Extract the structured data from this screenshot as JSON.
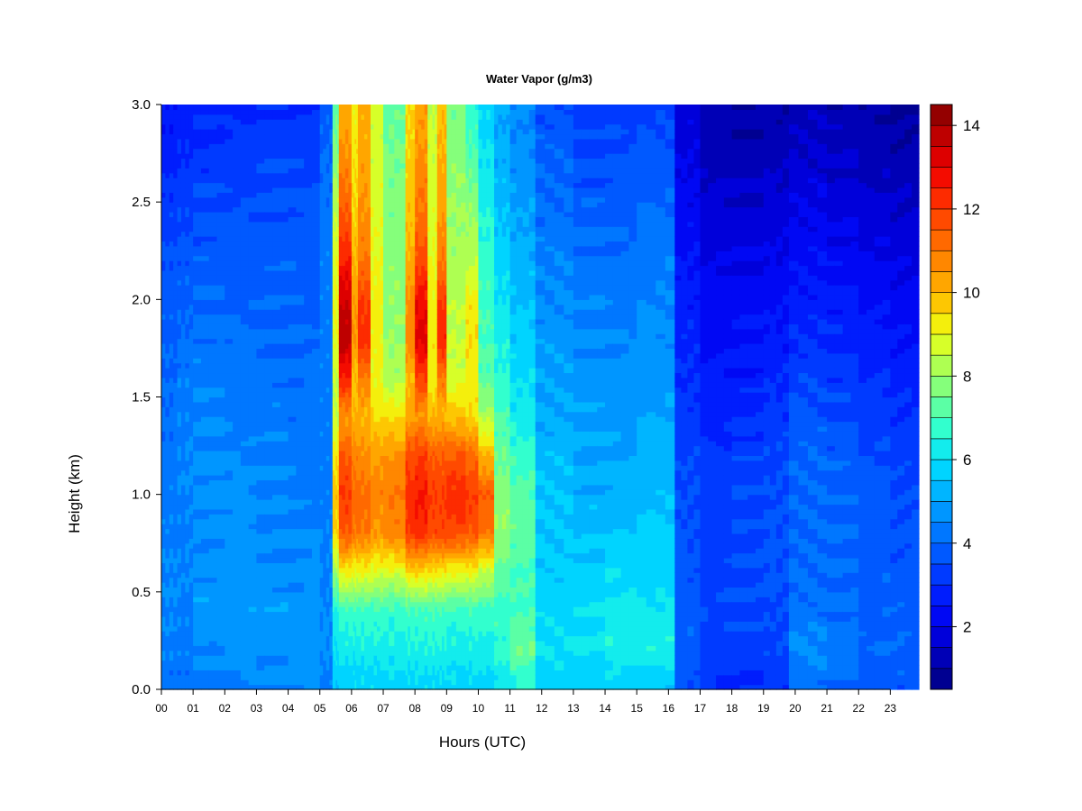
{
  "chart_data": {
    "type": "heatmap",
    "title": "Water Vapor (g/m3)",
    "xlabel": "Hours (UTC)",
    "ylabel": "Height (km)",
    "xlim": [
      0,
      23.9
    ],
    "ylim": [
      0,
      3
    ],
    "x_ticks": [
      "00",
      "01",
      "02",
      "03",
      "04",
      "05",
      "06",
      "07",
      "08",
      "09",
      "10",
      "11",
      "12",
      "13",
      "14",
      "15",
      "16",
      "17",
      "18",
      "19",
      "20",
      "21",
      "22",
      "23"
    ],
    "y_ticks": [
      "0.0",
      "0.5",
      "1.0",
      "1.5",
      "2.0",
      "2.5",
      "3.0"
    ],
    "colorbar": {
      "min": 0.5,
      "max": 14.5,
      "levels": 28,
      "ticks": [
        "2",
        "4",
        "6",
        "8",
        "10",
        "12",
        "14"
      ],
      "colors": [
        "#00007f",
        "#0000b8",
        "#0000f0",
        "#0020ff",
        "#0050ff",
        "#0080ff",
        "#00b0ff",
        "#00e0ff",
        "#30ffd0",
        "#70ff90",
        "#b0ff50",
        "#f0ff10",
        "#ffc000",
        "#ff9000",
        "#ff6000",
        "#ff3000",
        "#f00000",
        "#c00000",
        "#7f0000"
      ]
    },
    "profile_heights_km": [
      0,
      0.1,
      0.2,
      0.4,
      0.6,
      0.8,
      1.0,
      1.2,
      1.4,
      1.6,
      1.8,
      2.0,
      2.2,
      2.5,
      2.8,
      3.0
    ],
    "time_segments": [
      {
        "t": [
          0.0,
          0.5
        ],
        "profile": [
          4.3,
          4.2,
          4.4,
          4.5,
          4.5,
          4.4,
          4.3,
          4.2,
          4.1,
          4.0,
          3.9,
          3.8,
          3.6,
          3.2,
          2.7,
          2.5
        ]
      },
      {
        "t": [
          0.5,
          1.0
        ],
        "profile": [
          4.1,
          4.2,
          4.3,
          4.4,
          4.5,
          4.4,
          4.5,
          4.5,
          4.4,
          4.3,
          4.1,
          3.9,
          3.7,
          3.3,
          2.9,
          2.6
        ]
      },
      {
        "t": [
          1.0,
          2.0
        ],
        "profile": [
          4.3,
          4.4,
          4.6,
          4.8,
          4.7,
          4.6,
          4.7,
          4.6,
          4.5,
          4.3,
          4.2,
          4.0,
          3.8,
          3.5,
          3.0,
          2.8
        ]
      },
      {
        "t": [
          2.0,
          3.0
        ],
        "profile": [
          4.4,
          4.5,
          4.8,
          4.9,
          4.8,
          4.6,
          4.6,
          4.5,
          4.4,
          4.2,
          4.1,
          3.9,
          3.8,
          3.5,
          3.1,
          2.9
        ]
      },
      {
        "t": [
          3.0,
          4.0
        ],
        "profile": [
          4.5,
          4.5,
          4.7,
          4.8,
          4.7,
          4.5,
          4.5,
          4.4,
          4.3,
          4.2,
          4.0,
          3.9,
          3.8,
          3.6,
          3.3,
          3.1
        ]
      },
      {
        "t": [
          4.0,
          5.0
        ],
        "profile": [
          4.6,
          4.7,
          4.8,
          4.7,
          4.6,
          4.5,
          4.4,
          4.3,
          4.2,
          4.1,
          4.0,
          3.9,
          3.8,
          3.6,
          3.3,
          3.0
        ]
      },
      {
        "t": [
          5.0,
          5.4
        ],
        "profile": [
          4.3,
          4.4,
          4.6,
          4.5,
          4.4,
          4.4,
          4.3,
          4.3,
          4.3,
          4.3,
          4.3,
          4.3,
          4.3,
          4.2,
          4.0,
          3.8
        ]
      },
      {
        "t": [
          5.4,
          5.6
        ],
        "profile": [
          5.6,
          5.7,
          6.0,
          6.4,
          8.0,
          9.5,
          9.8,
          9.3,
          8.5,
          8.5,
          9.0,
          9.0,
          8.9,
          8.3,
          7.6,
          7.3
        ]
      },
      {
        "t": [
          5.6,
          6.0
        ],
        "profile": [
          5.6,
          5.8,
          6.2,
          6.8,
          9.2,
          11.5,
          12.0,
          11.5,
          10.5,
          12.5,
          13.8,
          13.5,
          12.5,
          11.3,
          10.5,
          10.2
        ]
      },
      {
        "t": [
          6.0,
          6.2
        ],
        "profile": [
          5.8,
          5.8,
          6.2,
          6.8,
          9.0,
          11.0,
          11.3,
          10.8,
          10.0,
          9.8,
          10.5,
          10.4,
          10.0,
          9.5,
          9.3,
          9.2
        ]
      },
      {
        "t": [
          6.2,
          6.6
        ],
        "profile": [
          5.8,
          5.9,
          6.3,
          6.8,
          9.0,
          11.0,
          11.2,
          10.7,
          10.0,
          11.0,
          12.3,
          12.0,
          11.0,
          10.5,
          10.2,
          10.2
        ]
      },
      {
        "t": [
          6.6,
          7.0
        ],
        "profile": [
          5.8,
          5.9,
          6.3,
          6.8,
          8.8,
          10.5,
          10.8,
          10.3,
          9.5,
          9.0,
          9.2,
          9.2,
          9.0,
          8.8,
          8.7,
          8.7
        ]
      },
      {
        "t": [
          7.0,
          7.7
        ],
        "profile": [
          5.8,
          6.0,
          6.3,
          6.7,
          8.8,
          10.8,
          11.0,
          10.5,
          9.5,
          8.2,
          8.0,
          7.9,
          7.8,
          7.7,
          7.5,
          7.4
        ]
      },
      {
        "t": [
          7.7,
          8.0
        ],
        "profile": [
          5.8,
          6.0,
          6.4,
          6.9,
          9.5,
          12.0,
          12.3,
          11.8,
          10.3,
          10.0,
          10.8,
          10.6,
          10.1,
          9.8,
          9.6,
          9.5
        ]
      },
      {
        "t": [
          8.0,
          8.4
        ],
        "profile": [
          5.8,
          6.0,
          6.4,
          6.9,
          9.5,
          12.3,
          12.6,
          12.0,
          10.5,
          12.0,
          13.2,
          12.8,
          11.8,
          11.0,
          10.5,
          10.3
        ]
      },
      {
        "t": [
          8.4,
          8.7
        ],
        "profile": [
          5.8,
          6.0,
          6.4,
          6.9,
          9.3,
          11.8,
          12.0,
          11.5,
          10.0,
          9.2,
          9.3,
          9.2,
          9.0,
          8.8,
          8.6,
          8.5
        ]
      },
      {
        "t": [
          8.7,
          9.0
        ],
        "profile": [
          5.8,
          6.0,
          6.4,
          6.9,
          9.3,
          11.8,
          12.0,
          11.5,
          10.0,
          11.0,
          12.4,
          12.0,
          11.0,
          10.3,
          10.0,
          9.8
        ]
      },
      {
        "t": [
          9.0,
          9.6
        ],
        "profile": [
          5.8,
          6.0,
          6.3,
          6.8,
          9.0,
          11.8,
          12.3,
          11.5,
          9.8,
          8.7,
          8.5,
          8.4,
          8.2,
          8.0,
          7.8,
          7.6
        ]
      },
      {
        "t": [
          9.6,
          10.0
        ],
        "profile": [
          5.8,
          6.0,
          6.3,
          6.8,
          9.0,
          11.5,
          12.0,
          11.2,
          9.5,
          9.2,
          9.5,
          9.2,
          8.4,
          7.8,
          7.0,
          6.6
        ]
      },
      {
        "t": [
          10.0,
          10.5
        ],
        "profile": [
          5.8,
          6.0,
          6.2,
          6.8,
          8.5,
          11.0,
          11.5,
          10.0,
          8.3,
          7.2,
          7.0,
          6.9,
          6.7,
          6.4,
          6.0,
          5.8
        ]
      },
      {
        "t": [
          10.5,
          11.0
        ],
        "profile": [
          6.0,
          6.3,
          6.7,
          6.8,
          7.3,
          8.0,
          7.8,
          7.4,
          7.0,
          6.6,
          6.4,
          6.1,
          5.8,
          5.4,
          5.1,
          5.0
        ]
      },
      {
        "t": [
          11.0,
          11.8
        ],
        "profile": [
          6.5,
          6.8,
          7.5,
          7.0,
          7.0,
          7.3,
          7.2,
          6.8,
          6.3,
          5.9,
          5.7,
          5.5,
          5.2,
          4.9,
          4.6,
          4.5
        ]
      },
      {
        "t": [
          11.8,
          13.0
        ],
        "profile": [
          5.7,
          5.8,
          6.0,
          5.8,
          5.7,
          5.6,
          5.5,
          5.3,
          5.1,
          4.9,
          4.8,
          4.6,
          4.4,
          4.1,
          3.8,
          3.6
        ]
      },
      {
        "t": [
          13.0,
          14.0
        ],
        "profile": [
          5.6,
          5.8,
          6.1,
          5.9,
          5.7,
          5.4,
          5.2,
          5.0,
          4.9,
          4.7,
          4.6,
          4.4,
          4.2,
          3.8,
          3.4,
          3.3
        ]
      },
      {
        "t": [
          14.0,
          15.0
        ],
        "profile": [
          5.7,
          5.9,
          6.4,
          6.2,
          5.9,
          5.5,
          5.2,
          5.0,
          4.8,
          4.7,
          4.5,
          4.3,
          4.1,
          3.8,
          3.5,
          3.3
        ]
      },
      {
        "t": [
          15.0,
          16.2
        ],
        "profile": [
          5.6,
          5.8,
          6.5,
          6.1,
          5.8,
          5.6,
          5.4,
          5.2,
          5.0,
          4.8,
          4.6,
          4.5,
          4.4,
          4.0,
          3.6,
          3.4
        ]
      },
      {
        "t": [
          16.2,
          17.0
        ],
        "profile": [
          3.6,
          3.7,
          3.8,
          3.8,
          3.7,
          3.6,
          3.5,
          3.4,
          3.2,
          3.0,
          2.9,
          2.7,
          2.5,
          2.2,
          1.9,
          1.7
        ]
      },
      {
        "t": [
          17.0,
          18.0
        ],
        "profile": [
          3.0,
          3.1,
          3.3,
          3.5,
          3.4,
          3.3,
          3.2,
          3.1,
          2.8,
          2.6,
          2.4,
          2.2,
          2.0,
          1.6,
          1.3,
          1.2
        ]
      },
      {
        "t": [
          18.0,
          19.0
        ],
        "profile": [
          3.0,
          3.1,
          3.3,
          3.4,
          3.5,
          3.4,
          3.4,
          3.3,
          3.0,
          2.7,
          2.5,
          2.3,
          2.0,
          1.6,
          1.2,
          1.0
        ]
      },
      {
        "t": [
          19.0,
          19.8
        ],
        "profile": [
          3.1,
          3.2,
          3.4,
          3.5,
          3.6,
          3.6,
          3.5,
          3.4,
          3.2,
          2.9,
          2.6,
          2.4,
          2.1,
          1.7,
          1.3,
          1.1
        ]
      },
      {
        "t": [
          19.8,
          21.0
        ],
        "profile": [
          4.2,
          4.3,
          4.7,
          4.2,
          4.1,
          4.0,
          4.0,
          3.9,
          3.7,
          3.4,
          3.0,
          2.7,
          2.4,
          2.0,
          1.5,
          1.3
        ]
      },
      {
        "t": [
          21.0,
          22.0
        ],
        "profile": [
          4.0,
          4.1,
          4.3,
          4.1,
          4.0,
          4.0,
          3.9,
          3.8,
          3.5,
          3.2,
          2.9,
          2.6,
          2.3,
          1.8,
          1.4,
          1.2
        ]
      },
      {
        "t": [
          22.0,
          23.0
        ],
        "profile": [
          3.8,
          3.9,
          4.0,
          3.9,
          3.9,
          3.8,
          3.7,
          3.5,
          3.3,
          3.0,
          2.7,
          2.4,
          2.1,
          1.6,
          1.2,
          1.0
        ]
      },
      {
        "t": [
          23.0,
          23.9
        ],
        "profile": [
          3.7,
          3.8,
          3.9,
          3.8,
          3.7,
          3.6,
          3.5,
          3.3,
          3.1,
          2.8,
          2.5,
          2.2,
          1.9,
          1.5,
          1.1,
          0.9
        ]
      }
    ]
  }
}
